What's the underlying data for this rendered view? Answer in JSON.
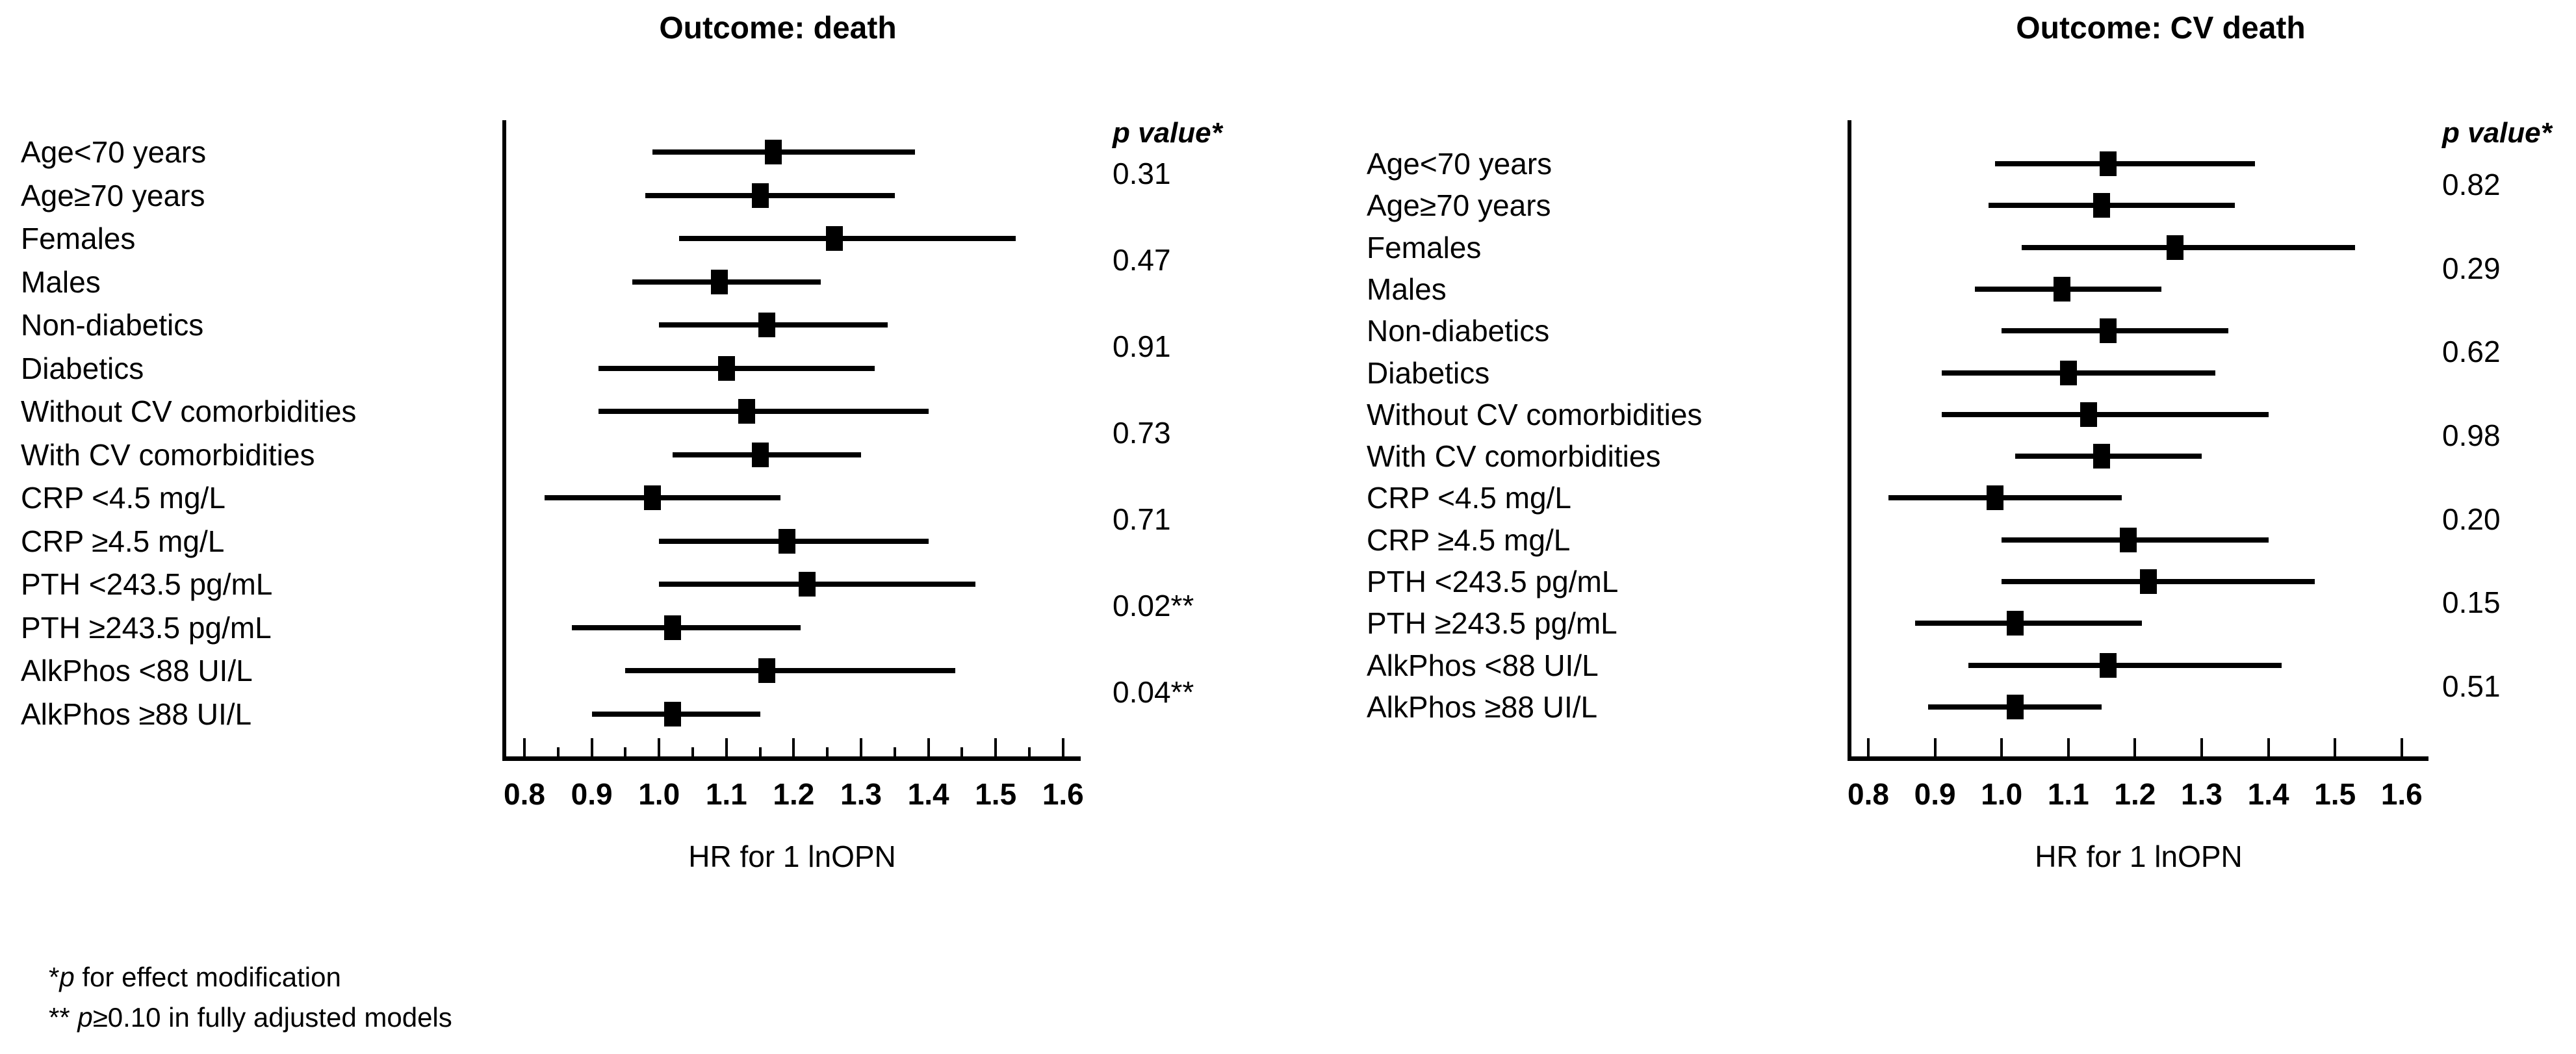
{
  "figure": {
    "background": "#ffffff",
    "ink_color": "#000000",
    "footnotes": [
      {
        "segments": [
          {
            "text": "*",
            "italic": false
          },
          {
            "text": "p",
            "italic": true
          },
          {
            "text": " for effect modification",
            "italic": false
          }
        ]
      },
      {
        "segments": [
          {
            "text": "** ",
            "italic": false
          },
          {
            "text": "p",
            "italic": true
          },
          {
            "text": "≥0.10 in fully adjusted models",
            "italic": false
          }
        ]
      }
    ]
  },
  "chart_data": [
    {
      "type": "forest",
      "title": "Outcome: death",
      "xlabel": "HR for 1 lnOPN",
      "p_header": "p value*",
      "xlim": [
        0.8,
        1.6
      ],
      "x_ticks": [
        0.8,
        0.9,
        1.0,
        1.1,
        1.2,
        1.3,
        1.4,
        1.5,
        1.6
      ],
      "x_tick_labels": [
        "0.8",
        "0.9",
        "1.0",
        "1.1",
        "1.2",
        "1.3",
        "1.4",
        "1.5",
        "1.6"
      ],
      "minor_ticks": true,
      "grid": false,
      "rows": [
        {
          "label": "Age<70 years",
          "hr": 1.17,
          "ci": [
            0.99,
            1.38
          ]
        },
        {
          "label": "Age≥70 years",
          "hr": 1.15,
          "ci": [
            0.98,
            1.35
          ]
        },
        {
          "label": "Females",
          "hr": 1.26,
          "ci": [
            1.03,
            1.53
          ]
        },
        {
          "label": "Males",
          "hr": 1.09,
          "ci": [
            0.96,
            1.24
          ]
        },
        {
          "label": "Non-diabetics",
          "hr": 1.16,
          "ci": [
            1.0,
            1.34
          ]
        },
        {
          "label": "Diabetics",
          "hr": 1.1,
          "ci": [
            0.91,
            1.32
          ]
        },
        {
          "label": "Without CV comorbidities",
          "hr": 1.13,
          "ci": [
            0.91,
            1.4
          ]
        },
        {
          "label": "With CV comorbidities",
          "hr": 1.15,
          "ci": [
            1.02,
            1.3
          ]
        },
        {
          "label": "CRP <4.5 mg/L",
          "hr": 0.99,
          "ci": [
            0.83,
            1.18
          ]
        },
        {
          "label": "CRP ≥4.5 mg/L",
          "hr": 1.19,
          "ci": [
            1.0,
            1.4
          ]
        },
        {
          "label": "PTH <243.5 pg/mL",
          "hr": 1.22,
          "ci": [
            1.0,
            1.47
          ]
        },
        {
          "label": "PTH ≥243.5 pg/mL",
          "hr": 1.02,
          "ci": [
            0.87,
            1.21
          ]
        },
        {
          "label": "AlkPhos <88 UI/L",
          "hr": 1.16,
          "ci": [
            0.95,
            1.44
          ]
        },
        {
          "label": "AlkPhos ≥88 UI/L",
          "hr": 1.02,
          "ci": [
            0.9,
            1.15
          ]
        }
      ],
      "p_values": [
        {
          "value": "0.31",
          "between_rows": [
            0,
            1
          ]
        },
        {
          "value": "0.47",
          "between_rows": [
            2,
            3
          ]
        },
        {
          "value": "0.91",
          "between_rows": [
            4,
            5
          ]
        },
        {
          "value": "0.73",
          "between_rows": [
            6,
            7
          ]
        },
        {
          "value": "0.71",
          "between_rows": [
            8,
            9
          ]
        },
        {
          "value": "0.02**",
          "between_rows": [
            10,
            11
          ]
        },
        {
          "value": "0.04**",
          "between_rows": [
            12,
            13
          ]
        }
      ]
    },
    {
      "type": "forest",
      "title": "Outcome: CV death",
      "xlabel": "HR for 1 lnOPN",
      "p_header": "p value*",
      "xlim": [
        0.8,
        1.6
      ],
      "x_ticks": [
        0.8,
        0.9,
        1.0,
        1.1,
        1.2,
        1.3,
        1.4,
        1.5,
        1.6
      ],
      "x_tick_labels": [
        "0.8",
        "0.9",
        "1.0",
        "1.1",
        "1.2",
        "1.3",
        "1.4",
        "1.5",
        "1.6"
      ],
      "minor_ticks": false,
      "grid": false,
      "rows": [
        {
          "label": "Age<70 years",
          "hr": 1.16,
          "ci": [
            0.99,
            1.38
          ]
        },
        {
          "label": "Age≥70 years",
          "hr": 1.15,
          "ci": [
            0.98,
            1.35
          ]
        },
        {
          "label": "Females",
          "hr": 1.26,
          "ci": [
            1.03,
            1.53
          ]
        },
        {
          "label": "Males",
          "hr": 1.09,
          "ci": [
            0.96,
            1.24
          ]
        },
        {
          "label": "Non-diabetics",
          "hr": 1.16,
          "ci": [
            1.0,
            1.34
          ]
        },
        {
          "label": "Diabetics",
          "hr": 1.1,
          "ci": [
            0.91,
            1.32
          ]
        },
        {
          "label": "Without CV comorbidities",
          "hr": 1.13,
          "ci": [
            0.91,
            1.4
          ]
        },
        {
          "label": "With CV comorbidities",
          "hr": 1.15,
          "ci": [
            1.02,
            1.3
          ]
        },
        {
          "label": "CRP <4.5 mg/L",
          "hr": 0.99,
          "ci": [
            0.83,
            1.18
          ]
        },
        {
          "label": "CRP ≥4.5 mg/L",
          "hr": 1.19,
          "ci": [
            1.0,
            1.4
          ]
        },
        {
          "label": "PTH <243.5 pg/mL",
          "hr": 1.22,
          "ci": [
            1.0,
            1.47
          ]
        },
        {
          "label": "PTH ≥243.5 pg/mL",
          "hr": 1.02,
          "ci": [
            0.87,
            1.21
          ]
        },
        {
          "label": "AlkPhos <88 UI/L",
          "hr": 1.16,
          "ci": [
            0.95,
            1.42
          ]
        },
        {
          "label": "AlkPhos ≥88 UI/L",
          "hr": 1.02,
          "ci": [
            0.89,
            1.15
          ]
        }
      ],
      "p_values": [
        {
          "value": "0.82",
          "between_rows": [
            0,
            1
          ]
        },
        {
          "value": "0.29",
          "between_rows": [
            2,
            3
          ]
        },
        {
          "value": "0.62",
          "between_rows": [
            4,
            5
          ]
        },
        {
          "value": "0.98",
          "between_rows": [
            6,
            7
          ]
        },
        {
          "value": "0.20",
          "between_rows": [
            8,
            9
          ]
        },
        {
          "value": "0.15",
          "between_rows": [
            10,
            11
          ]
        },
        {
          "value": "0.51",
          "between_rows": [
            12,
            13
          ]
        }
      ]
    }
  ]
}
